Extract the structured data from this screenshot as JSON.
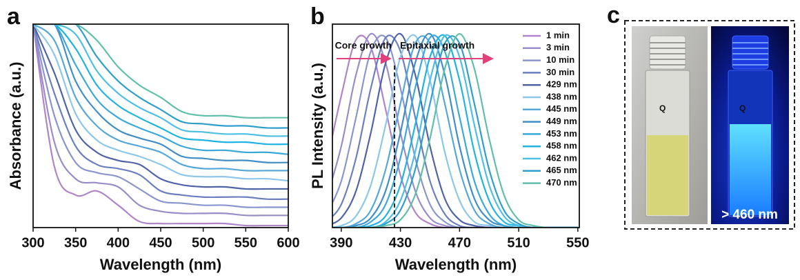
{
  "chart_data": [
    {
      "type": "line",
      "panel_label": "a",
      "x_label": "Wavelength (nm)",
      "y_label": "Absorbance (a.u.)",
      "x": [
        300,
        325,
        350,
        375,
        400,
        425,
        450,
        475,
        500,
        525,
        550,
        575,
        600
      ],
      "xlim": [
        300,
        600
      ],
      "xticks": [
        300,
        350,
        400,
        450,
        500,
        550,
        600
      ],
      "ylim": [
        0,
        100
      ],
      "series": [
        {
          "color": "#b084c8",
          "values": [
            100,
            30,
            16,
            18,
            11,
            3,
            2,
            2,
            2,
            2,
            1,
            1,
            1
          ]
        },
        {
          "color": "#9a8cc9",
          "values": [
            100,
            42,
            24,
            22,
            20,
            11,
            8,
            7,
            7,
            7,
            6,
            6,
            6
          ]
        },
        {
          "color": "#8a95cf",
          "values": [
            100,
            55,
            32,
            27,
            25,
            19,
            13,
            12,
            11,
            11,
            10,
            10,
            10
          ]
        },
        {
          "color": "#6b7fc0",
          "values": [
            100,
            66,
            40,
            31,
            29,
            26,
            18,
            16,
            15,
            15,
            15,
            14,
            14
          ]
        },
        {
          "color": "#4f63a8",
          "values": [
            100,
            76,
            48,
            37,
            33,
            31,
            24,
            21,
            20,
            20,
            19,
            19,
            19
          ]
        },
        {
          "color": "#8cc6ea",
          "values": [
            100,
            85,
            56,
            43,
            38,
            35,
            31,
            26,
            25,
            25,
            24,
            24,
            23
          ]
        },
        {
          "color": "#55a7d9",
          "values": [
            100,
            92,
            64,
            50,
            43,
            40,
            37,
            31,
            29,
            29,
            28,
            28,
            28
          ]
        },
        {
          "color": "#3f8ec8",
          "values": [
            100,
            100,
            72,
            57,
            48,
            44,
            41,
            35,
            34,
            33,
            33,
            32,
            32
          ]
        },
        {
          "color": "#39a8da",
          "values": [
            100,
            100,
            80,
            63,
            54,
            49,
            45,
            40,
            38,
            38,
            37,
            37,
            36
          ]
        },
        {
          "color": "#1fb3e3",
          "values": [
            100,
            100,
            88,
            70,
            60,
            54,
            49,
            44,
            43,
            42,
            42,
            41,
            41
          ]
        },
        {
          "color": "#4cbfe3",
          "values": [
            100,
            100,
            95,
            77,
            66,
            59,
            54,
            48,
            47,
            46,
            46,
            45,
            45
          ]
        },
        {
          "color": "#2e9fcc",
          "values": [
            100,
            100,
            100,
            84,
            72,
            64,
            58,
            52,
            51,
            50,
            50,
            49,
            49
          ]
        },
        {
          "color": "#5fbfa9",
          "values": [
            100,
            100,
            100,
            92,
            79,
            70,
            64,
            57,
            55,
            55,
            54,
            54,
            54
          ]
        }
      ]
    },
    {
      "type": "line",
      "panel_label": "b",
      "x_label": "Wavelength (nm)",
      "y_label": "PL Intensity (a.u.)",
      "x": [
        380,
        390,
        400,
        410,
        420,
        430,
        440,
        450,
        460,
        470,
        480,
        490,
        500,
        510,
        520,
        530,
        540,
        550
      ],
      "xlim": [
        384,
        551
      ],
      "xticks": [
        390,
        430,
        470,
        510,
        550
      ],
      "ylim": [
        0,
        105
      ],
      "annotations": [
        "Core growth",
        "Epitaxial growth"
      ],
      "divider_x": 426,
      "series": [
        {
          "name": "1 min",
          "color": "#b084c8",
          "values": [
            33,
            68,
            97,
            93,
            61,
            27,
            8,
            2,
            0,
            0,
            0,
            0,
            0,
            0,
            0,
            0,
            0,
            0
          ]
        },
        {
          "name": "3 min",
          "color": "#9a8cc9",
          "values": [
            15,
            42,
            79,
            100,
            85,
            49,
            19,
            5,
            1,
            0,
            0,
            0,
            0,
            0,
            0,
            0,
            0,
            0
          ]
        },
        {
          "name": "10 min",
          "color": "#8a95cf",
          "values": [
            7,
            24,
            57,
            91,
            98,
            72,
            36,
            12,
            3,
            0,
            0,
            0,
            0,
            0,
            0,
            0,
            0,
            0
          ]
        },
        {
          "name": "30 min",
          "color": "#6b7fc0",
          "values": [
            3,
            12,
            36,
            72,
            98,
            91,
            57,
            24,
            7,
            1,
            0,
            0,
            0,
            0,
            0,
            0,
            0,
            0
          ]
        },
        {
          "name": "429 nm",
          "color": "#4f63a8",
          "values": [
            1,
            5,
            19,
            49,
            85,
            100,
            79,
            42,
            15,
            4,
            1,
            0,
            0,
            0,
            0,
            0,
            0,
            0
          ]
        },
        {
          "name": "438 nm",
          "color": "#8cc6ea",
          "values": [
            0,
            1,
            6,
            22,
            53,
            88,
            99,
            76,
            39,
            14,
            3,
            1,
            0,
            0,
            0,
            0,
            0,
            0
          ]
        },
        {
          "name": "445 nm",
          "color": "#55a7d9",
          "values": [
            0,
            0,
            2,
            9,
            30,
            64,
            95,
            95,
            64,
            30,
            9,
            2,
            0,
            0,
            0,
            0,
            0,
            0
          ]
        },
        {
          "name": "449 nm",
          "color": "#3f8ec8",
          "values": [
            0,
            0,
            1,
            5,
            19,
            49,
            85,
            100,
            79,
            42,
            15,
            4,
            1,
            0,
            0,
            0,
            0,
            0
          ]
        },
        {
          "name": "453 nm",
          "color": "#39a8da",
          "values": [
            0,
            0,
            0,
            3,
            12,
            36,
            72,
            98,
            91,
            57,
            24,
            7,
            1,
            0,
            0,
            0,
            0,
            0
          ]
        },
        {
          "name": "458 nm",
          "color": "#1fb3e3",
          "values": [
            0,
            0,
            0,
            1,
            6,
            22,
            53,
            88,
            99,
            76,
            39,
            14,
            3,
            1,
            0,
            0,
            0,
            0
          ]
        },
        {
          "name": "462 nm",
          "color": "#4cbfe3",
          "values": [
            0,
            0,
            0,
            0,
            3,
            14,
            39,
            76,
            99,
            88,
            53,
            22,
            6,
            1,
            0,
            0,
            0,
            0
          ]
        },
        {
          "name": "465 nm",
          "color": "#2e9fcc",
          "values": [
            0,
            0,
            0,
            0,
            2,
            9,
            30,
            64,
            95,
            95,
            64,
            30,
            9,
            2,
            0,
            0,
            0,
            0
          ]
        },
        {
          "name": "470 nm",
          "color": "#5fbfa9",
          "values": [
            0,
            0,
            0,
            0,
            1,
            4,
            17,
            46,
            82,
            100,
            82,
            46,
            17,
            4,
            1,
            0,
            0,
            0
          ]
        }
      ]
    }
  ],
  "photo_panel": {
    "panel_label": "c",
    "label": "> 460 nm"
  }
}
